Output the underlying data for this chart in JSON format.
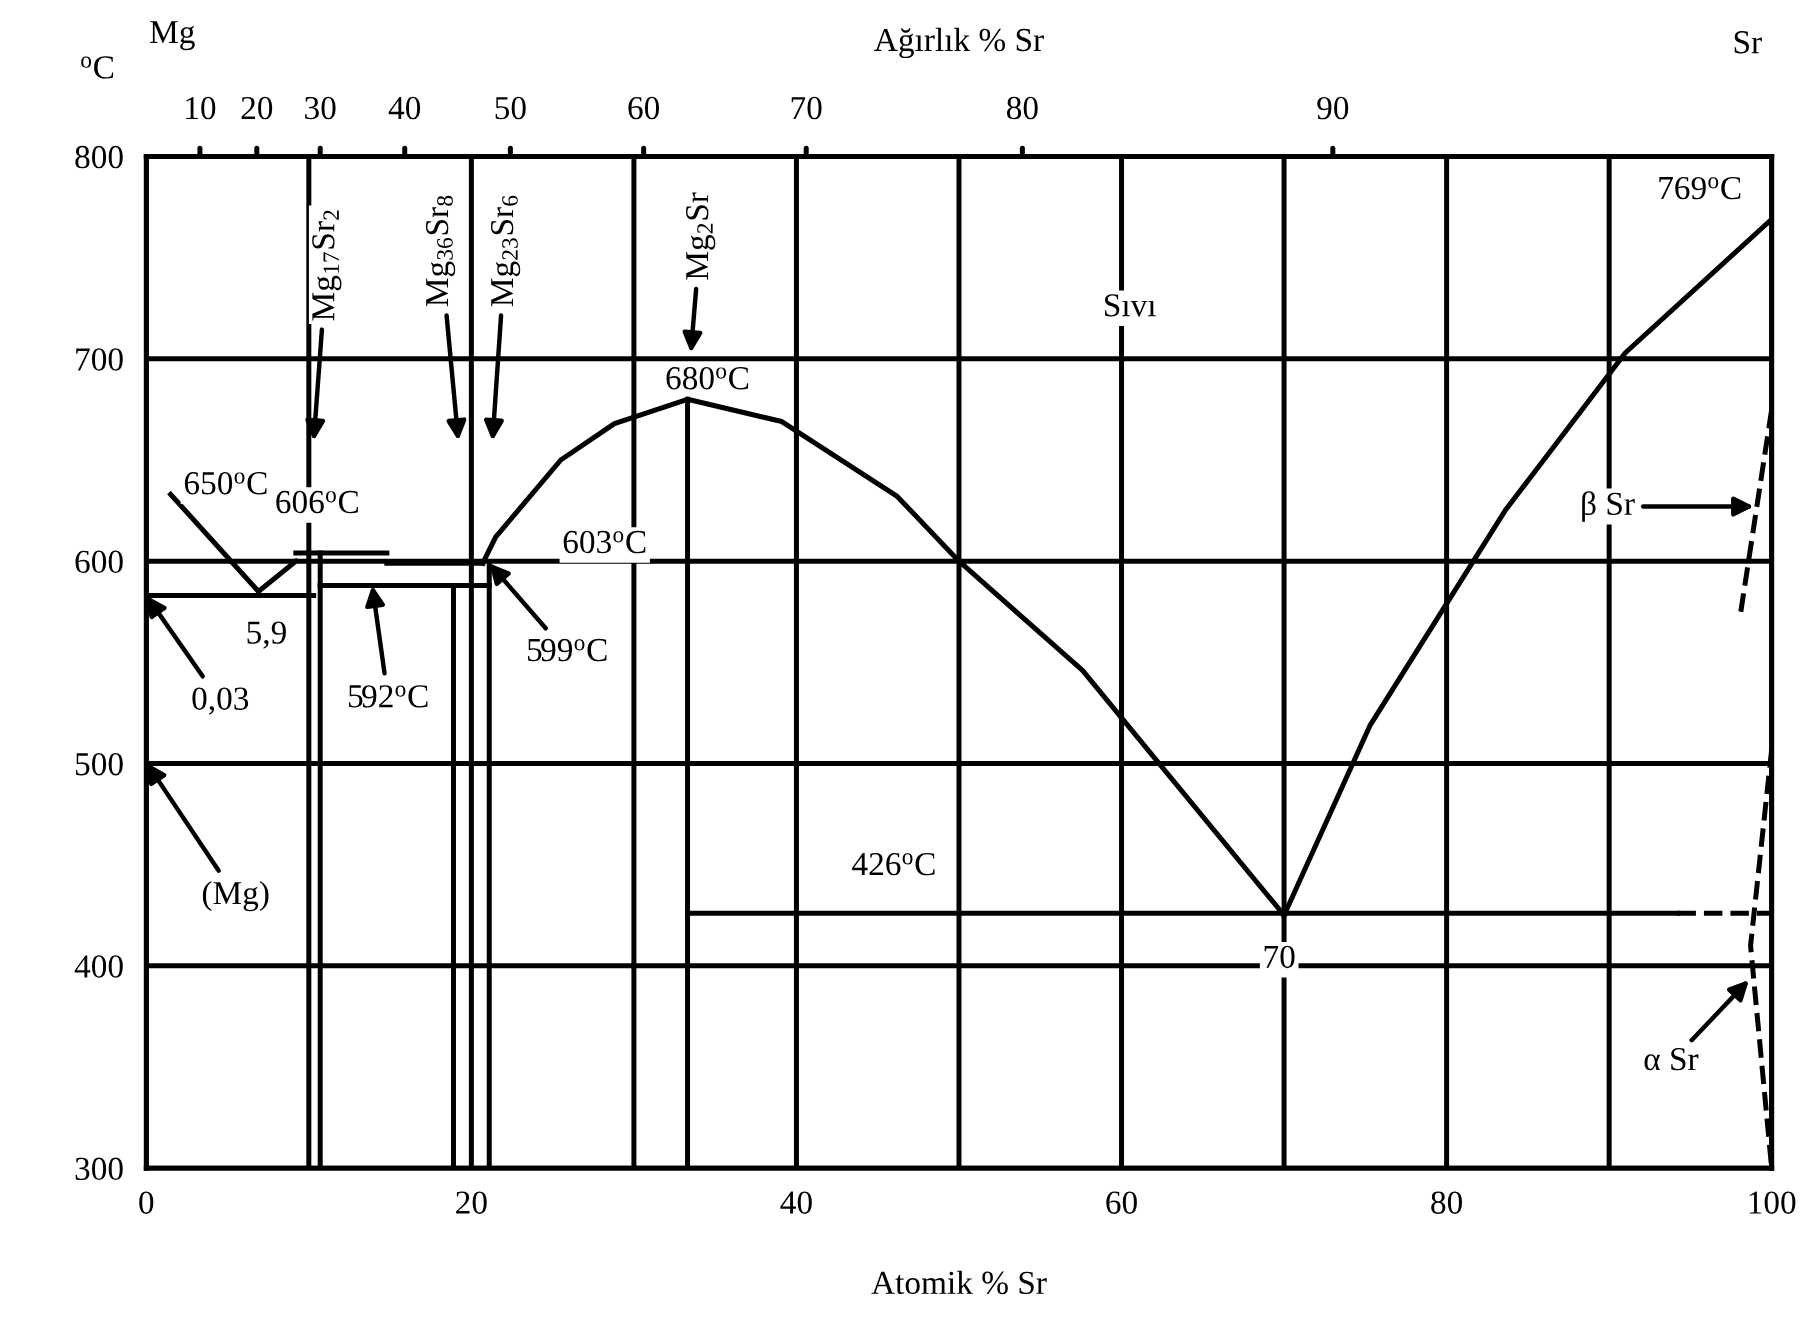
{
  "chart_data": {
    "type": "line",
    "xlabel": "Atomik % Sr",
    "x2label": "Ağırlık % Sr",
    "ylabel": "$^{o}$C",
    "xlim": [
      0,
      100
    ],
    "ylim": [
      300,
      800
    ],
    "xticks": [
      0,
      {
        "value": 10,
        "label": null
      },
      20,
      {
        "value": 30,
        "label": null
      },
      40,
      {
        "value": 50,
        "label": null
      },
      60,
      {
        "value": 70,
        "label": null
      },
      80,
      {
        "value": 90,
        "label": null
      },
      100
    ],
    "yticks": [
      300,
      400,
      500,
      600,
      700,
      800
    ],
    "grid": true,
    "series": [
      {
        "x": [
          1.5,
          6.9,
          9.2
        ],
        "values": [
          633,
          585,
          600
        ],
        "color": "#000000",
        "line_style": "solid"
      },
      {
        "x": [
          0,
          10.3
        ],
        "values": [
          583,
          583
        ],
        "color": "#000000",
        "line_style": "solid"
      },
      {
        "x": [
          9.2,
          14.8
        ],
        "values": [
          604,
          604
        ],
        "color": "#000000",
        "line_style": "solid"
      },
      {
        "x": [
          14.8,
          20.7
        ],
        "values": [
          599,
          599
        ],
        "color": "#000000",
        "line_style": "solid"
      },
      {
        "x": [
          10.7,
          21.1
        ],
        "values": [
          588,
          588
        ],
        "color": "#000000",
        "line_style": "solid"
      },
      {
        "x": [
          10.7,
          10.7
        ],
        "values": [
          300,
          604
        ],
        "color": "#000000",
        "line_style": "solid"
      },
      {
        "x": [
          18.9,
          18.9
        ],
        "values": [
          300,
          588
        ],
        "color": "#000000",
        "line_style": "solid"
      },
      {
        "x": [
          21.1,
          21.1
        ],
        "values": [
          300,
          599
        ],
        "color": "#000000",
        "line_style": "solid"
      },
      {
        "x": [
          33.3,
          33.3
        ],
        "values": [
          300,
          680
        ],
        "color": "#000000",
        "line_style": "solid"
      },
      {
        "x": [
          20.7,
          21.5,
          25.5,
          28.8,
          33.3,
          39.1,
          46.2,
          50,
          57.6,
          70
        ],
        "values": [
          599,
          612,
          650,
          668,
          680,
          669,
          632,
          600,
          546,
          425
        ],
        "color": "#000000",
        "line_style": "solid"
      },
      {
        "x": [
          70,
          75.3,
          83.6,
          91,
          100
        ],
        "values": [
          425,
          519,
          625,
          703,
          769
        ],
        "color": "#000000",
        "line_style": "solid"
      },
      {
        "x": [
          33.3,
          94.2
        ],
        "values": [
          426,
          426
        ],
        "color": "#000000",
        "line_style": "solid"
      },
      {
        "x": [
          94.2,
          100
        ],
        "values": [
          426,
          426
        ],
        "color": "#000000",
        "line_style": "dashed"
      },
      {
        "x": [
          98.1,
          100
        ],
        "values": [
          575,
          675
        ],
        "color": "#000000",
        "line_style": "dashed"
      },
      {
        "x": [
          100,
          98.7,
          100
        ],
        "values": [
          507,
          410,
          300
        ],
        "color": "#000000",
        "line_style": "dashed"
      }
    ],
    "annotations": [
      "Mg$_{17}$Sr$_{2}$",
      "Mg$_{36}$Sr$_{8}$",
      "Mg$_{23}$Sr$_{6}$",
      "Mg$_{2}$Sr",
      "650$^{o}$C",
      {
        "text": "606$^{o}$C",
        "x": 12,
        "y": 604
      },
      {
        "text": "603$^{o}$C",
        "x": 20.7,
        "y": 603
      },
      {
        "text": "5,9",
        "x": 6.9,
        "y": 585
      },
      {
        "text": "0,03",
        "x": 0,
        "y": 583
      },
      {
        "text": "592$^{o}$C",
        "x": 13.9,
        "y": 588
      },
      {
        "text": "599$^{o}$C",
        "x": 21.1,
        "y": 599
      },
      {
        "text": "680$^{o}$C",
        "x": 33.3,
        "y": 680
      },
      {
        "text": "769$^{o}$C",
        "x": 100,
        "y": 769
      },
      {
        "text": "426$^{o}$C",
        "x": 46,
        "y": 426
      },
      "70",
      "Sıvı",
      "β Sr",
      {
        "text": "α Sr",
        "x": 98.6,
        "y": 393
      },
      "(Mg)",
      "Mg",
      "Sr",
      "10",
      "20",
      "30",
      "40",
      "50",
      "60",
      "70",
      "80",
      "90"
    ]
  }
}
